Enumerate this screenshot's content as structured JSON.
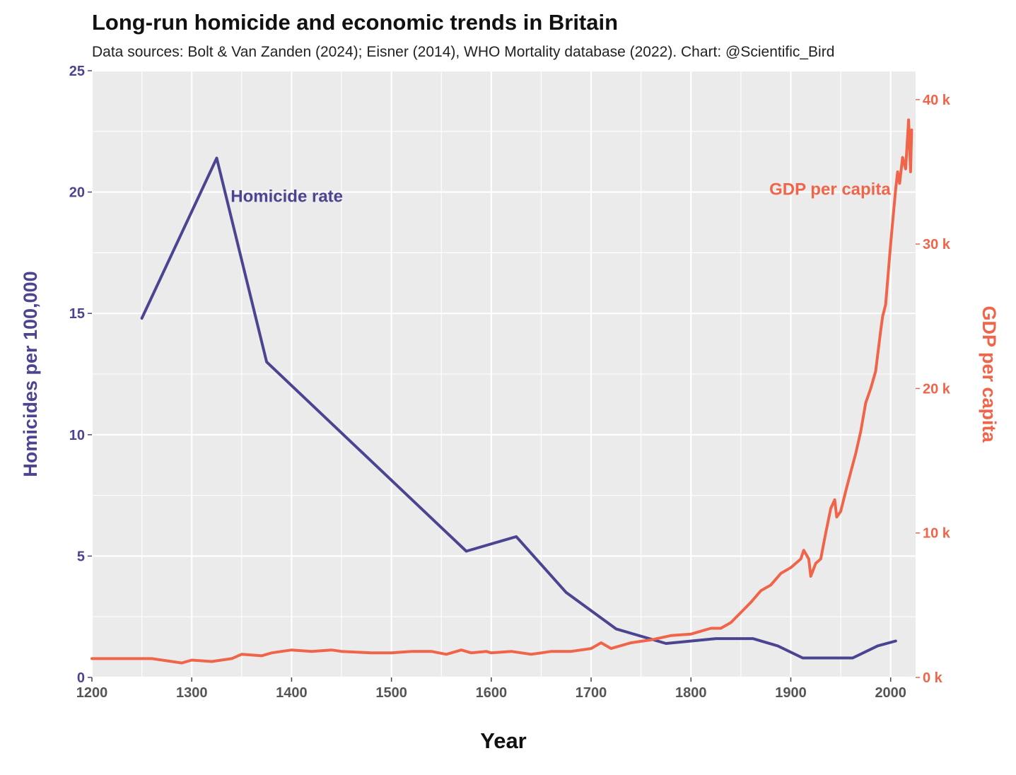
{
  "chart_data": {
    "type": "line",
    "title": "Long-run homicide and economic trends in Britain",
    "subtitle": "Data sources: Bolt & Van Zanden (2024); Eisner (2014), WHO Mortality database (2022). Chart: @Scientific_Bird",
    "xlabel": "Year",
    "ylabel_left": "Homicides per 100,000",
    "ylabel_right": "GDP per capita",
    "xlim": [
      1200,
      2025
    ],
    "ylim_left": [
      0,
      25
    ],
    "ylim_right": [
      0,
      42000
    ],
    "x_ticks": [
      "1200",
      "1300",
      "1400",
      "1500",
      "1600",
      "1700",
      "1800",
      "1900",
      "2000"
    ],
    "y_left_ticks": [
      "0",
      "5",
      "10",
      "15",
      "20",
      "25"
    ],
    "y_right_ticks": [
      "0 k",
      "10 k",
      "20 k",
      "30 k",
      "40 k"
    ],
    "grid": true,
    "legend": "none (direct labels)",
    "colors": {
      "homicide": "#4b4491",
      "gdp": "#f0654a",
      "panel": "#ebebeb",
      "grid": "#ffffff"
    },
    "series": [
      {
        "name": "Homicide rate",
        "axis": "left",
        "x": [
          1250,
          1325,
          1375,
          1575,
          1625,
          1675,
          1725,
          1775,
          1825,
          1862,
          1887,
          1912,
          1937,
          1962,
          1987,
          2005
        ],
        "values": [
          14.8,
          21.4,
          13.0,
          5.2,
          5.8,
          3.5,
          2.0,
          1.4,
          1.6,
          1.6,
          1.3,
          0.8,
          0.8,
          0.8,
          1.3,
          1.5
        ]
      },
      {
        "name": "GDP per capita",
        "axis": "right",
        "x": [
          1200,
          1250,
          1260,
          1280,
          1290,
          1300,
          1320,
          1340,
          1350,
          1370,
          1380,
          1390,
          1400,
          1420,
          1440,
          1450,
          1480,
          1500,
          1520,
          1540,
          1555,
          1570,
          1580,
          1595,
          1600,
          1620,
          1640,
          1650,
          1660,
          1680,
          1700,
          1710,
          1720,
          1740,
          1760,
          1780,
          1800,
          1820,
          1830,
          1840,
          1850,
          1860,
          1870,
          1880,
          1890,
          1900,
          1910,
          1913,
          1918,
          1920,
          1925,
          1930,
          1935,
          1940,
          1944,
          1946,
          1950,
          1955,
          1960,
          1965,
          1970,
          1975,
          1980,
          1985,
          1990,
          1992,
          1995,
          2000,
          2005,
          2007,
          2009,
          2012,
          2015,
          2018,
          2020,
          2021
        ],
        "values": [
          1300,
          1300,
          1300,
          1100,
          1000,
          1200,
          1100,
          1300,
          1600,
          1500,
          1700,
          1800,
          1900,
          1800,
          1900,
          1800,
          1700,
          1700,
          1800,
          1800,
          1600,
          1900,
          1700,
          1800,
          1700,
          1800,
          1600,
          1700,
          1800,
          1800,
          2000,
          2400,
          2000,
          2400,
          2600,
          2900,
          3000,
          3400,
          3400,
          3800,
          4500,
          5200,
          6000,
          6400,
          7200,
          7600,
          8200,
          8800,
          8200,
          7000,
          7900,
          8200,
          10000,
          11700,
          12300,
          11100,
          11500,
          12900,
          14200,
          15500,
          17000,
          19000,
          20000,
          21200,
          24000,
          25000,
          25800,
          30000,
          33800,
          35000,
          34200,
          36000,
          35200,
          38600,
          35000,
          37900
        ]
      }
    ],
    "annotations": [
      {
        "text": "Homicide rate",
        "series": "Homicide rate"
      },
      {
        "text": "GDP per capita",
        "series": "GDP per capita"
      }
    ]
  }
}
